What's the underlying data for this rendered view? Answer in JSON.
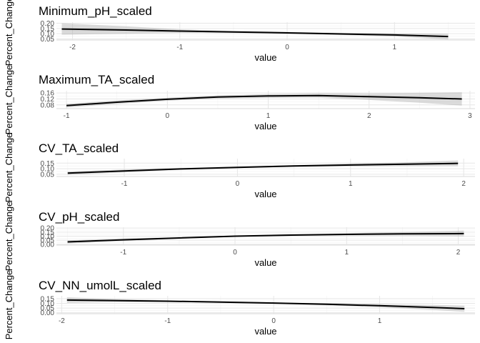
{
  "figure": {
    "ylabel": "Percent_Change",
    "xlabel": "value"
  },
  "chart_data": [
    {
      "type": "line",
      "title": "Minimum_pH_scaled",
      "xlabel": "value",
      "ylabel": "Percent_Change",
      "xlim": [
        -2.15,
        1.75
      ],
      "ylim": [
        0.04,
        0.21
      ],
      "xticks": [
        -2,
        -1,
        0,
        1
      ],
      "yticks": [
        0.05,
        0.1,
        0.15,
        0.2
      ],
      "ytick_labels": [
        "0.05",
        "0.10",
        "0.15",
        "0.20"
      ],
      "series": [
        {
          "x": [
            -2.1,
            -1.5,
            -1.0,
            -0.5,
            0.0,
            0.5,
            1.0,
            1.5
          ],
          "y": [
            0.145,
            0.135,
            0.125,
            0.117,
            0.108,
            0.098,
            0.088,
            0.073
          ],
          "lower": [
            0.09,
            0.1,
            0.108,
            0.107,
            0.1,
            0.088,
            0.072,
            0.045
          ],
          "upper": [
            0.2,
            0.17,
            0.142,
            0.127,
            0.116,
            0.108,
            0.104,
            0.1
          ]
        }
      ]
    },
    {
      "type": "line",
      "title": "Maximum_TA_scaled",
      "xlabel": "value",
      "ylabel": "Percent_Change",
      "xlim": [
        -1.1,
        3.05
      ],
      "ylim": [
        0.055,
        0.175
      ],
      "xticks": [
        -1,
        0,
        1,
        2,
        3
      ],
      "yticks": [
        0.08,
        0.12,
        0.16
      ],
      "ytick_labels": [
        "0.08",
        "0.12",
        "0.16"
      ],
      "series": [
        {
          "x": [
            -1.0,
            -0.5,
            0.0,
            0.5,
            1.0,
            1.5,
            2.0,
            2.5,
            2.92
          ],
          "y": [
            0.075,
            0.098,
            0.118,
            0.133,
            0.14,
            0.143,
            0.135,
            0.128,
            0.12
          ],
          "lower": [
            0.062,
            0.086,
            0.108,
            0.122,
            0.127,
            0.128,
            0.113,
            0.095,
            0.075
          ],
          "upper": [
            0.088,
            0.11,
            0.128,
            0.144,
            0.153,
            0.158,
            0.157,
            0.161,
            0.165
          ]
        }
      ]
    },
    {
      "type": "line",
      "title": "CV_TA_scaled",
      "xlabel": "value",
      "ylabel": "Percent_Change",
      "xlim": [
        -1.6,
        2.1
      ],
      "ylim": [
        0.03,
        0.19
      ],
      "xticks": [
        -1,
        0,
        1,
        2
      ],
      "yticks": [
        0.05,
        0.1,
        0.15
      ],
      "ytick_labels": [
        "0.05",
        "0.10",
        "0.15"
      ],
      "series": [
        {
          "x": [
            -1.5,
            -1.0,
            -0.5,
            0.0,
            0.5,
            1.0,
            1.5,
            1.95
          ],
          "y": [
            0.06,
            0.08,
            0.098,
            0.112,
            0.124,
            0.133,
            0.14,
            0.148
          ],
          "lower": [
            0.045,
            0.068,
            0.09,
            0.106,
            0.116,
            0.12,
            0.122,
            0.122
          ],
          "upper": [
            0.075,
            0.092,
            0.106,
            0.118,
            0.132,
            0.146,
            0.158,
            0.174
          ]
        }
      ]
    },
    {
      "type": "line",
      "title": "CV_pH_scaled",
      "xlabel": "value",
      "ylabel": "Percent_Change",
      "xlim": [
        -1.6,
        2.15
      ],
      "ylim": [
        -0.01,
        0.21
      ],
      "xticks": [
        -1,
        0,
        1,
        2
      ],
      "yticks": [
        0.0,
        0.05,
        0.1,
        0.15,
        0.2
      ],
      "ytick_labels": [
        "0.00",
        "0.05",
        "0.10",
        "0.15",
        "0.20"
      ],
      "series": [
        {
          "x": [
            -1.5,
            -1.0,
            -0.5,
            0.0,
            0.5,
            1.0,
            1.5,
            2.05
          ],
          "y": [
            0.03,
            0.055,
            0.078,
            0.1,
            0.113,
            0.122,
            0.128,
            0.132
          ],
          "lower": [
            0.01,
            0.04,
            0.068,
            0.094,
            0.104,
            0.108,
            0.106,
            0.098
          ],
          "upper": [
            0.05,
            0.07,
            0.088,
            0.106,
            0.122,
            0.136,
            0.15,
            0.168
          ]
        }
      ]
    },
    {
      "type": "line",
      "title": "CV_NN_umolL_scaled",
      "xlabel": "value",
      "ylabel": "Percent_Change",
      "xlim": [
        -2.05,
        1.9
      ],
      "ylim": [
        -0.01,
        0.18
      ],
      "xticks": [
        -2,
        -1,
        0,
        1
      ],
      "yticks": [
        0.0,
        0.05,
        0.1,
        0.15
      ],
      "ytick_labels": [
        "0.00",
        "0.05",
        "0.10",
        "0.15"
      ],
      "series": [
        {
          "x": [
            -1.95,
            -1.5,
            -1.0,
            -0.5,
            0.0,
            0.5,
            1.0,
            1.5,
            1.8
          ],
          "y": [
            0.135,
            0.13,
            0.123,
            0.114,
            0.103,
            0.09,
            0.075,
            0.057,
            0.043
          ],
          "lower": [
            0.105,
            0.115,
            0.113,
            0.107,
            0.096,
            0.08,
            0.058,
            0.03,
            0.01
          ],
          "upper": [
            0.165,
            0.145,
            0.133,
            0.121,
            0.11,
            0.1,
            0.092,
            0.084,
            0.076
          ]
        }
      ]
    }
  ]
}
